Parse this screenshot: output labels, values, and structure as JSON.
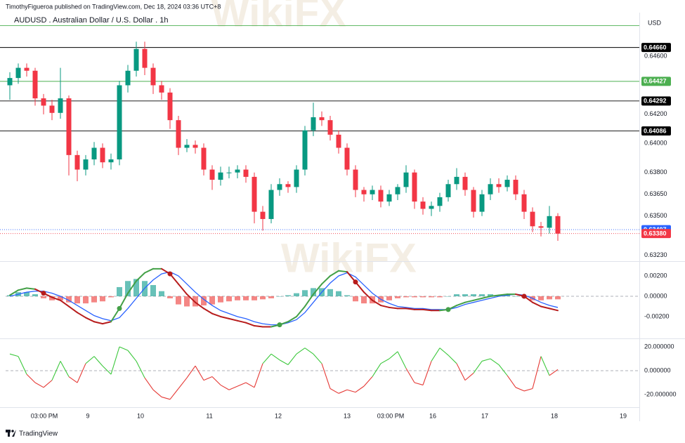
{
  "header": {
    "byline": "TimothyFigueroa published on TradingView.com, Dec 18, 2024 03:36 UTC+8"
  },
  "footer": {
    "brand": "TradingView"
  },
  "watermark": "WikiFX",
  "chart_data": [
    {
      "type": "candlestick",
      "title": "AUDUSD . Australian Dollar / U.S. Dollar . 1h",
      "currency": "USD",
      "xlim": [
        0,
        75
      ],
      "ylim": [
        0.6319,
        0.6489
      ],
      "yticks": [
        {
          "value": 0.646,
          "label": "0.64600"
        },
        {
          "value": 0.642,
          "label": "0.64200"
        },
        {
          "value": 0.64,
          "label": "0.64000"
        },
        {
          "value": 0.638,
          "label": "0.63800"
        },
        {
          "value": 0.6365,
          "label": "0.63650"
        },
        {
          "value": 0.635,
          "label": "0.63500"
        },
        {
          "value": 0.6323,
          "label": "0.63230"
        }
      ],
      "up_color": "#089981",
      "down_color": "#f23645",
      "open": [
        0.644,
        0.6445,
        0.6452,
        0.645,
        0.6431,
        0.6426,
        0.6421,
        0.6431,
        0.6392,
        0.6382,
        0.6389,
        0.6397,
        0.6387,
        0.6389,
        0.644,
        0.645,
        0.6465,
        0.6452,
        0.644,
        0.6435,
        0.6416,
        0.6397,
        0.6399,
        0.6397,
        0.6382,
        0.6375,
        0.638,
        0.638,
        0.6382,
        0.6377,
        0.6353,
        0.6348,
        0.6368,
        0.6372,
        0.637,
        0.6382,
        0.6409,
        0.6418,
        0.6416,
        0.6406,
        0.6397,
        0.6382,
        0.6368,
        0.6365,
        0.6368,
        0.636,
        0.6365,
        0.637,
        0.638,
        0.636,
        0.6355,
        0.6357,
        0.6363,
        0.6372,
        0.6377,
        0.6368,
        0.6353,
        0.6365,
        0.6372,
        0.637,
        0.6375,
        0.6365,
        0.6353,
        0.6343,
        0.6342,
        0.635
      ],
      "high": [
        0.6449,
        0.6455,
        0.6455,
        0.6452,
        0.6434,
        0.643,
        0.6452,
        0.6433,
        0.6395,
        0.6392,
        0.6401,
        0.64,
        0.6393,
        0.6443,
        0.6454,
        0.647,
        0.647,
        0.6455,
        0.6443,
        0.6438,
        0.6419,
        0.6403,
        0.6402,
        0.64,
        0.6385,
        0.6384,
        0.6384,
        0.6385,
        0.6385,
        0.638,
        0.6357,
        0.6372,
        0.6376,
        0.6374,
        0.6385,
        0.6412,
        0.6428,
        0.6422,
        0.6419,
        0.6409,
        0.64,
        0.6385,
        0.637,
        0.6371,
        0.6371,
        0.6368,
        0.6372,
        0.6385,
        0.6382,
        0.6363,
        0.636,
        0.6366,
        0.6375,
        0.6383,
        0.638,
        0.637,
        0.6368,
        0.6376,
        0.6376,
        0.6378,
        0.6378,
        0.6368,
        0.6356,
        0.6346,
        0.6357,
        0.6352
      ],
      "low": [
        0.643,
        0.6441,
        0.6446,
        0.6426,
        0.642,
        0.6416,
        0.6417,
        0.6378,
        0.6374,
        0.6378,
        0.6385,
        0.6383,
        0.6382,
        0.6385,
        0.6435,
        0.6446,
        0.6447,
        0.6434,
        0.643,
        0.641,
        0.6392,
        0.6394,
        0.6393,
        0.6378,
        0.6368,
        0.6371,
        0.6376,
        0.6376,
        0.6373,
        0.6345,
        0.634,
        0.6345,
        0.6364,
        0.6366,
        0.6366,
        0.6378,
        0.6405,
        0.6412,
        0.6402,
        0.6393,
        0.6378,
        0.6363,
        0.636,
        0.6361,
        0.6356,
        0.6357,
        0.6361,
        0.6366,
        0.6355,
        0.6351,
        0.635,
        0.6353,
        0.636,
        0.6368,
        0.6364,
        0.6349,
        0.635,
        0.6361,
        0.6366,
        0.6367,
        0.6361,
        0.6348,
        0.6339,
        0.6336,
        0.6338,
        0.6333
      ],
      "close": [
        0.6445,
        0.6452,
        0.645,
        0.6431,
        0.6426,
        0.6421,
        0.6431,
        0.6392,
        0.6382,
        0.6389,
        0.6397,
        0.6387,
        0.6389,
        0.644,
        0.645,
        0.6465,
        0.6452,
        0.644,
        0.6435,
        0.6416,
        0.6397,
        0.6399,
        0.6397,
        0.6382,
        0.6375,
        0.638,
        0.638,
        0.6382,
        0.6377,
        0.6353,
        0.6348,
        0.6368,
        0.6372,
        0.637,
        0.6382,
        0.6409,
        0.6418,
        0.6416,
        0.6406,
        0.6397,
        0.6382,
        0.6368,
        0.6365,
        0.6368,
        0.636,
        0.6365,
        0.637,
        0.638,
        0.636,
        0.6355,
        0.6357,
        0.6363,
        0.6372,
        0.6377,
        0.6368,
        0.6353,
        0.6365,
        0.6372,
        0.637,
        0.6375,
        0.6365,
        0.6353,
        0.6343,
        0.6342,
        0.635,
        0.6338
      ],
      "levels": [
        {
          "value": 0.6481,
          "color": "#4caf50"
        },
        {
          "value": 0.6466,
          "label": "0.64660",
          "color": "#000000"
        },
        {
          "value": 0.64427,
          "label": "0.64427",
          "color": "#4caf50"
        },
        {
          "value": 0.64292,
          "label": "0.64292",
          "color": "#000000"
        },
        {
          "value": 0.64086,
          "label": "0.64086",
          "color": "#000000"
        },
        {
          "value": 0.63407,
          "label": "0.63407",
          "color": "#2962ff",
          "dotted": true
        },
        {
          "value": 0.6338,
          "label": "0.63380",
          "color": "#f23645",
          "dotted": true
        }
      ]
    },
    {
      "type": "macd",
      "xlim": [
        0,
        75
      ],
      "ylim": [
        -0.004,
        0.00324
      ],
      "yticks": [
        {
          "value": 0.002,
          "label": "0.00200"
        },
        {
          "value": 0,
          "label": "0.00000"
        },
        {
          "value": -0.002,
          "label": "-0.00200"
        }
      ],
      "macd": {
        "up_color": "#43a047",
        "down_color": "#b71c1c",
        "values": [
          0.0001,
          0.0006,
          0.0008,
          0.0007,
          0.0003,
          -0.0001,
          -0.0004,
          -0.001,
          -0.0016,
          -0.0021,
          -0.0025,
          -0.0027,
          -0.0025,
          -0.0012,
          0.0003,
          0.0015,
          0.0023,
          0.0027,
          0.0027,
          0.0022,
          0.0012,
          0.0002,
          -0.0006,
          -0.0012,
          -0.0017,
          -0.002,
          -0.0022,
          -0.0024,
          -0.0026,
          -0.0029,
          -0.003,
          -0.003,
          -0.0028,
          -0.0025,
          -0.002,
          -0.001,
          0.0002,
          0.0012,
          0.002,
          0.0025,
          0.0024,
          0.0014,
          0.0004,
          -0.0004,
          -0.0009,
          -0.0011,
          -0.0012,
          -0.0012,
          -0.0013,
          -0.0013,
          -0.0014,
          -0.0014,
          -0.0013,
          -0.0009,
          -0.0006,
          -0.0004,
          -0.0002,
          0.0,
          0.0001,
          0.0002,
          0.0002,
          0.0,
          -0.0006,
          -0.001,
          -0.0012,
          -0.0014
        ]
      },
      "signal": {
        "color": "#2962ff",
        "values": [
          0.0,
          0.0002,
          0.0004,
          0.0005,
          0.0005,
          0.0003,
          0.0,
          -0.0004,
          -0.0009,
          -0.0014,
          -0.0019,
          -0.0022,
          -0.0024,
          -0.0021,
          -0.0012,
          -0.0002,
          0.0008,
          0.0016,
          0.0022,
          0.0024,
          0.002,
          0.0012,
          0.0004,
          -0.0003,
          -0.0009,
          -0.0014,
          -0.0017,
          -0.002,
          -0.0022,
          -0.0025,
          -0.0027,
          -0.0028,
          -0.0028,
          -0.0026,
          -0.0023,
          -0.0016,
          -0.0006,
          0.0004,
          0.0013,
          0.002,
          0.0023,
          0.0019,
          0.0011,
          0.0003,
          -0.0003,
          -0.0007,
          -0.001,
          -0.0011,
          -0.0012,
          -0.0012,
          -0.0013,
          -0.0013,
          -0.0013,
          -0.0011,
          -0.0008,
          -0.0006,
          -0.0004,
          -0.0002,
          0.0,
          0.0001,
          0.0002,
          0.0001,
          -0.0002,
          -0.0006,
          -0.0009,
          -0.0011
        ]
      },
      "histogram": {
        "positive_color": "#26a69a",
        "negative_color": "#ef5350",
        "values": [
          0.0001,
          0.0004,
          0.0004,
          0.0002,
          -0.0002,
          -0.0004,
          -0.0004,
          -0.0006,
          -0.0007,
          -0.0007,
          -0.0006,
          -0.0005,
          -0.0001,
          0.0009,
          0.0015,
          0.0017,
          0.0015,
          0.0011,
          0.0005,
          -0.0002,
          -0.0008,
          -0.001,
          -0.001,
          -0.0009,
          -0.0008,
          -0.0006,
          -0.0005,
          -0.0004,
          -0.0004,
          -0.0004,
          -0.0003,
          -0.0002,
          0,
          0.0001,
          0.0003,
          0.0006,
          0.0008,
          0.0008,
          0.0007,
          0.0005,
          0.0001,
          -0.0005,
          -0.0007,
          -0.0007,
          -0.0006,
          -0.0004,
          -0.0002,
          -0.0001,
          -0.0001,
          -0.0001,
          -0.0001,
          -0.0001,
          0,
          0.0002,
          0.0002,
          0.0002,
          0.0002,
          0.0002,
          0.0001,
          0.0001,
          0,
          -0.0001,
          -0.0004,
          -0.0004,
          -0.0003,
          -0.0003
        ]
      }
    },
    {
      "type": "line",
      "xlim": [
        0,
        75
      ],
      "ylim": [
        -29.4,
        25.3
      ],
      "yticks": [
        {
          "value": 20,
          "label": "20.000000"
        },
        {
          "value": 0,
          "label": "0.000000"
        },
        {
          "value": -20,
          "label": "-20.000000"
        }
      ],
      "positive_color": "#3cc83c",
      "negative_color": "#e53935",
      "values": [
        14,
        12,
        -3,
        -10,
        -14,
        -8,
        8,
        -5,
        -10,
        6,
        12,
        4,
        -3,
        20,
        17,
        8,
        -6,
        -16,
        -22,
        -24,
        -15,
        -6,
        4,
        -8,
        -5,
        -12,
        -16,
        -13,
        -10,
        -14,
        6,
        14,
        9,
        5,
        14,
        19,
        14,
        6,
        -15,
        -19,
        -16,
        -18,
        -13,
        -5,
        6,
        10,
        16,
        2,
        -10,
        -12,
        8,
        19,
        13,
        6,
        -8,
        -2,
        8,
        10,
        5,
        -4,
        -14,
        -17,
        -15,
        12,
        -4,
        1
      ],
      "xticks": [
        {
          "value": 4.58,
          "label": "03:00 PM"
        },
        {
          "value": 9.75,
          "label": "9"
        },
        {
          "value": 16,
          "label": "10"
        },
        {
          "value": 24.17,
          "label": "11"
        },
        {
          "value": 32.33,
          "label": "12"
        },
        {
          "value": 40.5,
          "label": "13"
        },
        {
          "value": 45.67,
          "label": "03:00 PM"
        },
        {
          "value": 50.67,
          "label": "16"
        },
        {
          "value": 56.83,
          "label": "17"
        },
        {
          "value": 65.08,
          "label": "18"
        },
        {
          "value": 73.25,
          "label": "19"
        }
      ]
    }
  ]
}
